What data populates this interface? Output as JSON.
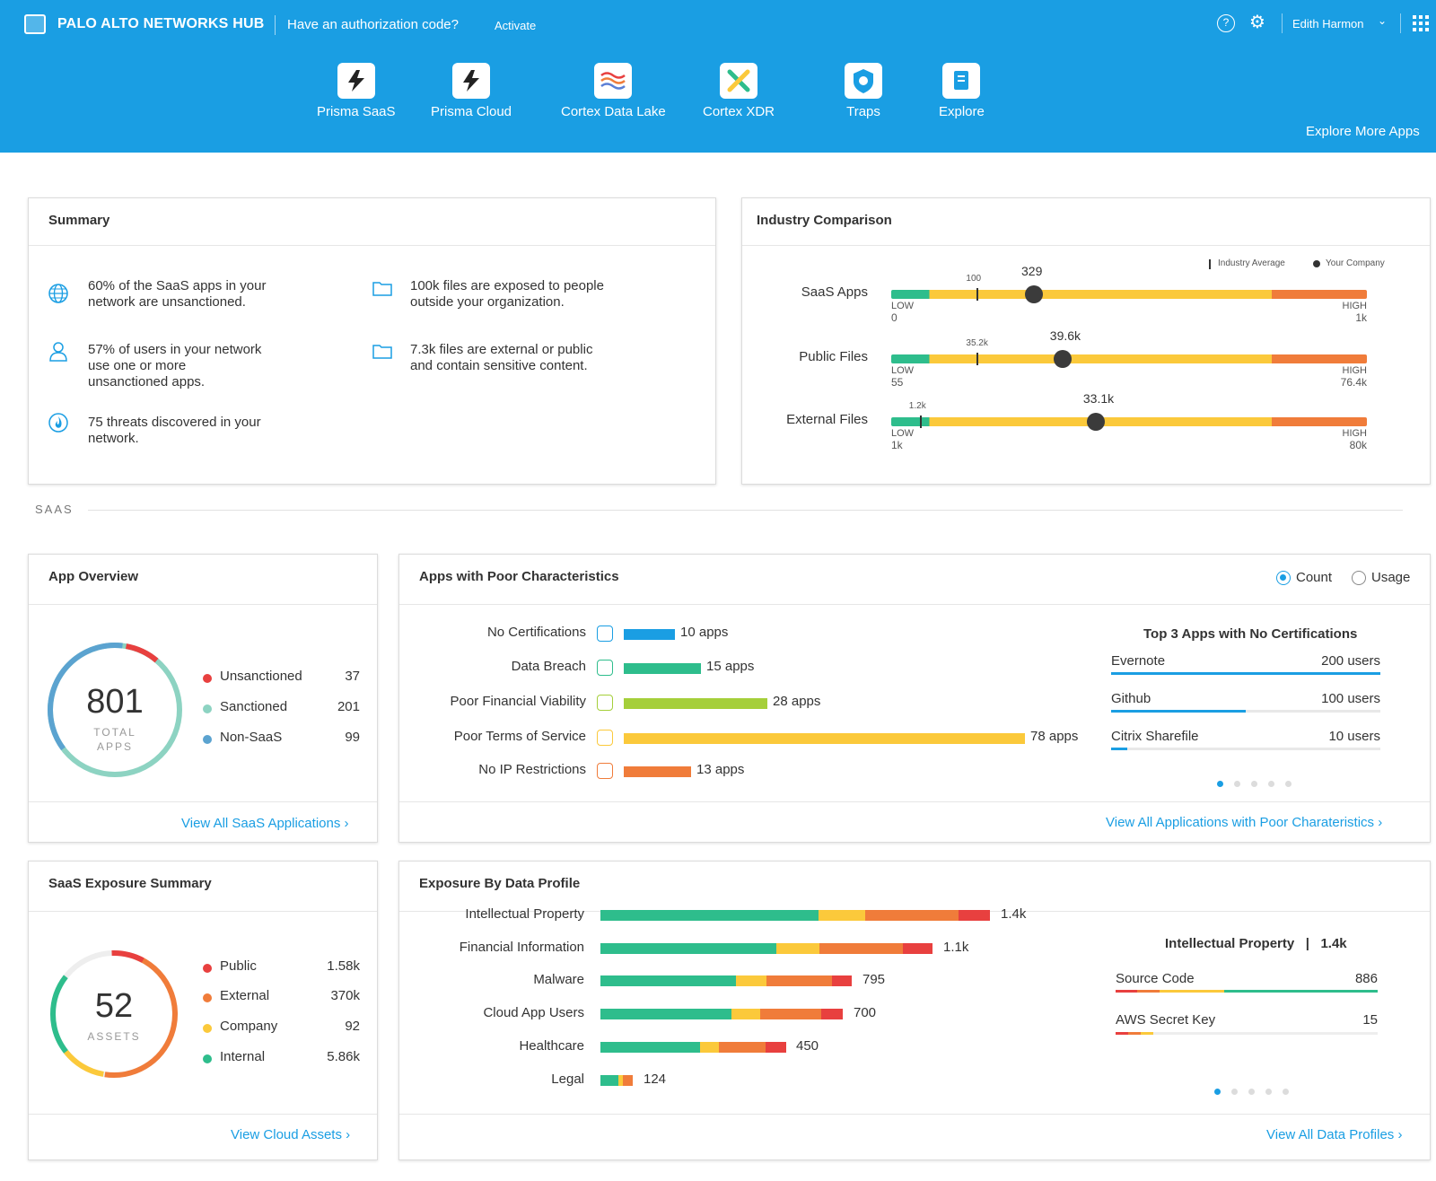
{
  "header": {
    "brand": "PALO ALTO NETWORKS HUB",
    "auth_prompt": "Have an authorization code?",
    "activate": "Activate",
    "user_name": "Edith Harmon",
    "help": "?",
    "explore_more": "Explore More Apps",
    "apps": [
      {
        "label": "Prisma SaaS",
        "icon": "prisma-saas-icon"
      },
      {
        "label": "Prisma  Cloud",
        "icon": "prisma-cloud-icon"
      },
      {
        "label": "Cortex Data Lake",
        "icon": "cortex-data-lake-icon"
      },
      {
        "label": "Cortex XDR",
        "icon": "cortex-xdr-icon"
      },
      {
        "label": "Traps",
        "icon": "traps-icon"
      },
      {
        "label": "Explore",
        "icon": "explore-icon"
      }
    ]
  },
  "summary": {
    "title": "Summary",
    "items": [
      {
        "line1": "60% of the SaaS apps in your",
        "line2": "network are unsanctioned.",
        "line3": "",
        "icon": "globe-icon"
      },
      {
        "line1": "57% of users in your network",
        "line2": "use one or more",
        "line3": "unsanctioned apps.",
        "icon": "user-icon"
      },
      {
        "line1": "75 threats discovered in your",
        "line2": "network.",
        "line3": "",
        "icon": "threat-icon"
      },
      {
        "line1": "100k files are exposed to people",
        "line2": "outside your organization.",
        "line3": "",
        "icon": "folder-icon"
      },
      {
        "line1": "7.3k files are external or public",
        "line2": "and contain sensitive content.",
        "line3": "",
        "icon": "folder-icon"
      }
    ]
  },
  "industry": {
    "title": "Industry Comparison",
    "legend_avg": "Industry Average",
    "legend_company": "Your Company",
    "rows": [
      {
        "label": "SaaS Apps",
        "low_label": "LOW",
        "low": "0",
        "high_label": "HIGH",
        "high": "1k",
        "avg": "100",
        "company": "329",
        "avg_frac": 0.18,
        "company_frac": 0.3
      },
      {
        "label": "Public Files",
        "low_label": "LOW",
        "low": "55",
        "high_label": "HIGH",
        "high": "76.4k",
        "avg": "35.2k",
        "company": "39.6k",
        "avg_frac": 0.18,
        "company_frac": 0.36
      },
      {
        "label": "External Files",
        "low_label": "LOW",
        "low": "1k",
        "high_label": "HIGH",
        "high": "80k",
        "avg": "1.2k",
        "company": "33.1k",
        "avg_frac": 0.06,
        "company_frac": 0.43
      }
    ]
  },
  "section": {
    "saas": "SAAS"
  },
  "app_overview": {
    "title": "App Overview",
    "total": "801",
    "total_label1": "TOTAL",
    "total_label2": "APPS",
    "legend": [
      {
        "label": "Unsanctioned",
        "value": "37",
        "color": "#e8403f"
      },
      {
        "label": "Sanctioned",
        "value": "201",
        "color": "#8dd3c2"
      },
      {
        "label": "Non-SaaS",
        "value": "99",
        "color": "#5ba3d0"
      }
    ],
    "link": "View All SaaS Applications"
  },
  "poor_apps": {
    "title": "Apps with Poor Characteristics",
    "radio_count": "Count",
    "radio_usage": "Usage",
    "bars": [
      {
        "label": "No Certifications",
        "value": "10 apps",
        "count": 10,
        "color": "#1a9ee3",
        "icon": "certificate-icon",
        "icon_color": "#1a9ee3"
      },
      {
        "label": "Data Breach",
        "value": "15 apps",
        "count": 15,
        "color": "#2ebd8c",
        "icon": "data-breach-icon",
        "icon_color": "#2ebd8c"
      },
      {
        "label": "Poor Financial Viability",
        "value": "28 apps",
        "count": 28,
        "color": "#a5cf3a",
        "icon": "dollar-icon",
        "icon_color": "#a5cf3a"
      },
      {
        "label": "Poor Terms of Service",
        "value": "78 apps",
        "count": 78,
        "color": "#fbc93b",
        "icon": "terms-icon",
        "icon_color": "#fbc93b"
      },
      {
        "label": "No IP Restrictions",
        "value": "13 apps",
        "count": 13,
        "color": "#f07c3a",
        "icon": "ip-icon",
        "icon_color": "#f07c3a"
      }
    ],
    "top_title": "Top 3 Apps with No Certifications",
    "top": [
      {
        "name": "Evernote",
        "users": "200 users",
        "frac": 1.0
      },
      {
        "name": "Github",
        "users": "100 users",
        "frac": 0.5
      },
      {
        "name": "Citrix Sharefile",
        "users": "10 users",
        "frac": 0.06
      }
    ],
    "link": "View All  Applications with Poor Charateristics"
  },
  "exposure_summary": {
    "title": "SaaS Exposure Summary",
    "total": "52",
    "total_label": "ASSETS",
    "legend": [
      {
        "label": "Public",
        "value": "1.58k",
        "color": "#e8403f"
      },
      {
        "label": "External",
        "value": "370k",
        "color": "#f07c3a"
      },
      {
        "label": "Company",
        "value": "92",
        "color": "#fbc93b"
      },
      {
        "label": "Internal",
        "value": "5.86k",
        "color": "#2ebd8c"
      }
    ],
    "link": "View Cloud Assets"
  },
  "data_profile": {
    "title": "Exposure By Data Profile",
    "rows": [
      {
        "label": "Intellectual Property",
        "value": "1.4k",
        "segments": [
          0.56,
          0.12,
          0.24,
          0.08
        ]
      },
      {
        "label": "Financial Information",
        "value": "1.1k",
        "segments": [
          0.53,
          0.13,
          0.25,
          0.09
        ]
      },
      {
        "label": "Malware",
        "value": "795",
        "segments": [
          0.54,
          0.12,
          0.26,
          0.08
        ]
      },
      {
        "label": "Cloud App Users",
        "value": "700",
        "segments": [
          0.54,
          0.12,
          0.25,
          0.09
        ]
      },
      {
        "label": "Healthcare",
        "value": "450",
        "segments": [
          0.54,
          0.1,
          0.25,
          0.11
        ]
      },
      {
        "label": "Legal",
        "value": "124",
        "segments": [
          0.55,
          0.15,
          0.3,
          0.0
        ]
      }
    ],
    "segment_colors": [
      "#2ebd8c",
      "#fbc93b",
      "#f07c3a",
      "#e8403f"
    ],
    "detail_title": "Intellectual Property",
    "detail_sep": "|",
    "detail_value": "1.4k",
    "detail": [
      {
        "name": "Source Code",
        "value": "886"
      },
      {
        "name": "AWS Secret Key",
        "value": "15"
      }
    ],
    "link": "View All Data Profiles"
  },
  "colors": {
    "accent": "#1a9ee3",
    "green": "#2ebd8c",
    "yellow": "#fbc93b",
    "orange": "#f07c3a",
    "red": "#e8403f"
  }
}
